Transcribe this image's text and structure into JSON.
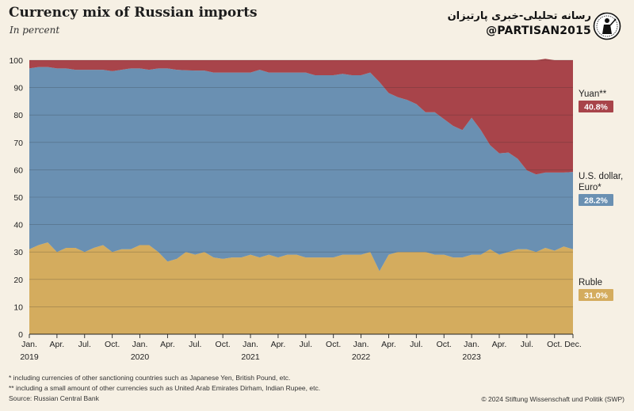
{
  "header": {
    "title": "Currency mix of Russian imports",
    "subtitle": "In percent"
  },
  "brand": {
    "persian": "رسانه تحلیلی-خبری پارتیزان",
    "handle": "@PARTISAN2015"
  },
  "footnotes": {
    "star1": "*   including currencies of other sanctioning countries such as Japanese Yen, British Pound, etc.",
    "star2": "**  including a small amount of other currencies such as United Arab Emirates Dirham, Indian Rupee, etc.",
    "source": "Source: Russian Central Bank",
    "credit": "© 2024 Stiftung Wissenschaft und Politik (SWP)"
  },
  "chart_data": {
    "type": "area",
    "stacked": true,
    "x_months": [
      "2019-01",
      "2019-02",
      "2019-03",
      "2019-04",
      "2019-05",
      "2019-06",
      "2019-07",
      "2019-08",
      "2019-09",
      "2019-10",
      "2019-11",
      "2019-12",
      "2020-01",
      "2020-02",
      "2020-03",
      "2020-04",
      "2020-05",
      "2020-06",
      "2020-07",
      "2020-08",
      "2020-09",
      "2020-10",
      "2020-11",
      "2020-12",
      "2021-01",
      "2021-02",
      "2021-03",
      "2021-04",
      "2021-05",
      "2021-06",
      "2021-07",
      "2021-08",
      "2021-09",
      "2021-10",
      "2021-11",
      "2021-12",
      "2022-01",
      "2022-02",
      "2022-03",
      "2022-04",
      "2022-05",
      "2022-06",
      "2022-07",
      "2022-08",
      "2022-09",
      "2022-10",
      "2022-11",
      "2022-12",
      "2023-01",
      "2023-02",
      "2023-03",
      "2023-04",
      "2023-05",
      "2023-06",
      "2023-07",
      "2023-08",
      "2023-09",
      "2023-10",
      "2023-11",
      "2023-12"
    ],
    "x_tick_labels": [
      "Jan.",
      "Apr.",
      "Jul.",
      "Oct.",
      "Jan.",
      "Apr.",
      "Jul.",
      "Oct.",
      "Jan.",
      "Apr.",
      "Jul.",
      "Oct.",
      "Jan.",
      "Apr.",
      "Jul.",
      "Oct.",
      "Jan.",
      "Apr.",
      "Jul.",
      "Oct.",
      "Dec."
    ],
    "x_tick_indices": [
      0,
      3,
      6,
      9,
      12,
      15,
      18,
      21,
      24,
      27,
      30,
      33,
      36,
      39,
      42,
      45,
      48,
      51,
      54,
      57,
      59
    ],
    "year_labels": [
      "2019",
      "2020",
      "2021",
      "2022",
      "2023"
    ],
    "year_label_indices": [
      0,
      12,
      24,
      36,
      48
    ],
    "ylim": [
      0,
      100
    ],
    "yticks": [
      0,
      10,
      20,
      30,
      40,
      50,
      60,
      70,
      80,
      90,
      100
    ],
    "grid": true,
    "series": [
      {
        "name": "Ruble",
        "color": "#d4ac5e",
        "end_label": "31.0%",
        "values": [
          31,
          32.5,
          33.5,
          30,
          31.5,
          31.5,
          30,
          31.5,
          32.5,
          30,
          31,
          31,
          32.5,
          32.5,
          30,
          26.5,
          27.5,
          30,
          29,
          30,
          28,
          27.5,
          28,
          28,
          29,
          28,
          29,
          28,
          29,
          29,
          28,
          28,
          28,
          28,
          29,
          29,
          29,
          30,
          23,
          29,
          30,
          30,
          30,
          30,
          29,
          29,
          28,
          28,
          29,
          29,
          31,
          29,
          30,
          31,
          31,
          30,
          31.5,
          30.5,
          32,
          31
        ]
      },
      {
        "name": "U.S. dollar, Euro*",
        "color": "#6a90b2",
        "end_label": "28.2%",
        "values": [
          66,
          65,
          64,
          67,
          65.5,
          65,
          66.5,
          65,
          64,
          66,
          65.5,
          66,
          64.5,
          64,
          67,
          70.5,
          69,
          66.3,
          67.2,
          66.2,
          67.5,
          68,
          67.5,
          67.5,
          66.5,
          68.5,
          66.5,
          67.5,
          66.5,
          66.5,
          67.5,
          66.5,
          66.5,
          66.5,
          66,
          65.5,
          65.5,
          65.5,
          69,
          59,
          56.5,
          55.5,
          54,
          51,
          52,
          49.5,
          48,
          46.5,
          50,
          45.5,
          38,
          37,
          36.3,
          33,
          28.8,
          28.3,
          27.5,
          28.5,
          27,
          28.2
        ]
      },
      {
        "name": "Yuan**",
        "color": "#a8444a",
        "end_label": "40.8%",
        "values": [
          3,
          2.5,
          2.5,
          3,
          3,
          3.5,
          3.5,
          3.5,
          3.5,
          4,
          3.5,
          3,
          3,
          3.5,
          3,
          3,
          3.5,
          3.7,
          3.8,
          3.8,
          4.5,
          4.5,
          4.5,
          4.5,
          4.5,
          3.5,
          4.5,
          4.5,
          4.5,
          4.5,
          4.5,
          5.5,
          5.5,
          5.5,
          5,
          5.5,
          5.5,
          4.5,
          8,
          12,
          13.5,
          14.5,
          16,
          19,
          19,
          21.5,
          24,
          25.5,
          21,
          25.5,
          31,
          34,
          33.7,
          36,
          40.2,
          41.7,
          41.5,
          41,
          41,
          40.8
        ]
      }
    ]
  }
}
